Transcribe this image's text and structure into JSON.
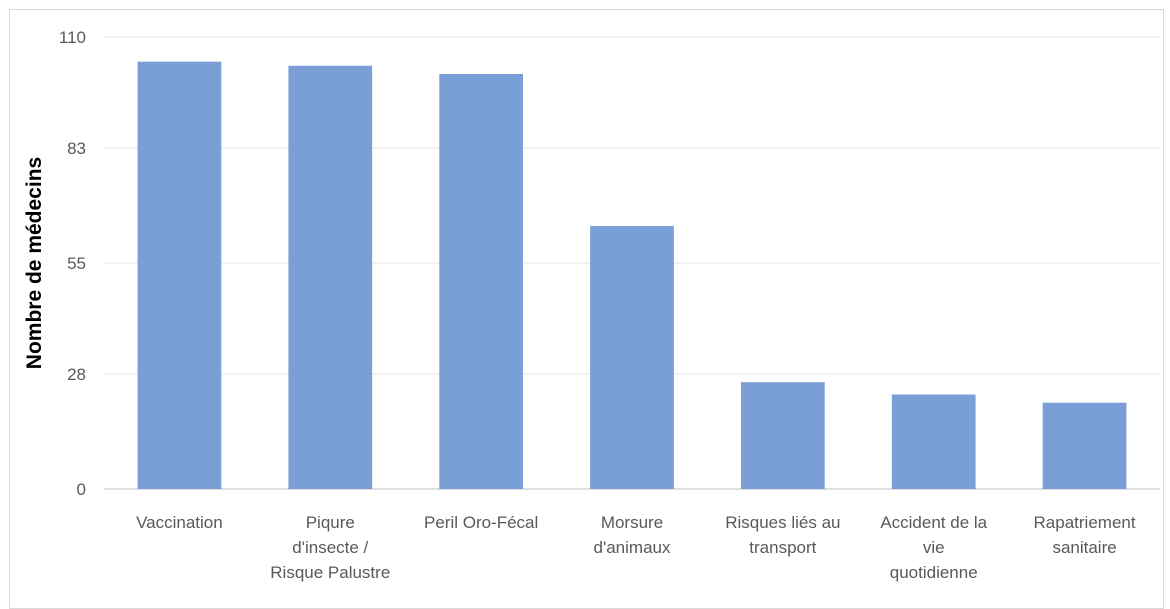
{
  "chart_data": {
    "type": "bar",
    "ylabel": "Nombre de médecins",
    "xlabel": "",
    "ylim": [
      0,
      110
    ],
    "yticks": [
      "0",
      "28",
      "55",
      "83",
      "110"
    ],
    "grid": true,
    "legend": "none",
    "bar_color": "#7a9fd6",
    "categories": [
      [
        "Vaccination"
      ],
      [
        "Piqure",
        "d'insecte /",
        "Risque Palustre"
      ],
      [
        "Peril Oro-Fécal"
      ],
      [
        "Morsure",
        "d'animaux"
      ],
      [
        "Risques liés au",
        "transport"
      ],
      [
        "Accident de la",
        "vie",
        "quotidienne"
      ],
      [
        "Rapatriement",
        "sanitaire"
      ]
    ],
    "values": [
      104,
      103,
      101,
      64,
      26,
      23,
      21
    ]
  }
}
